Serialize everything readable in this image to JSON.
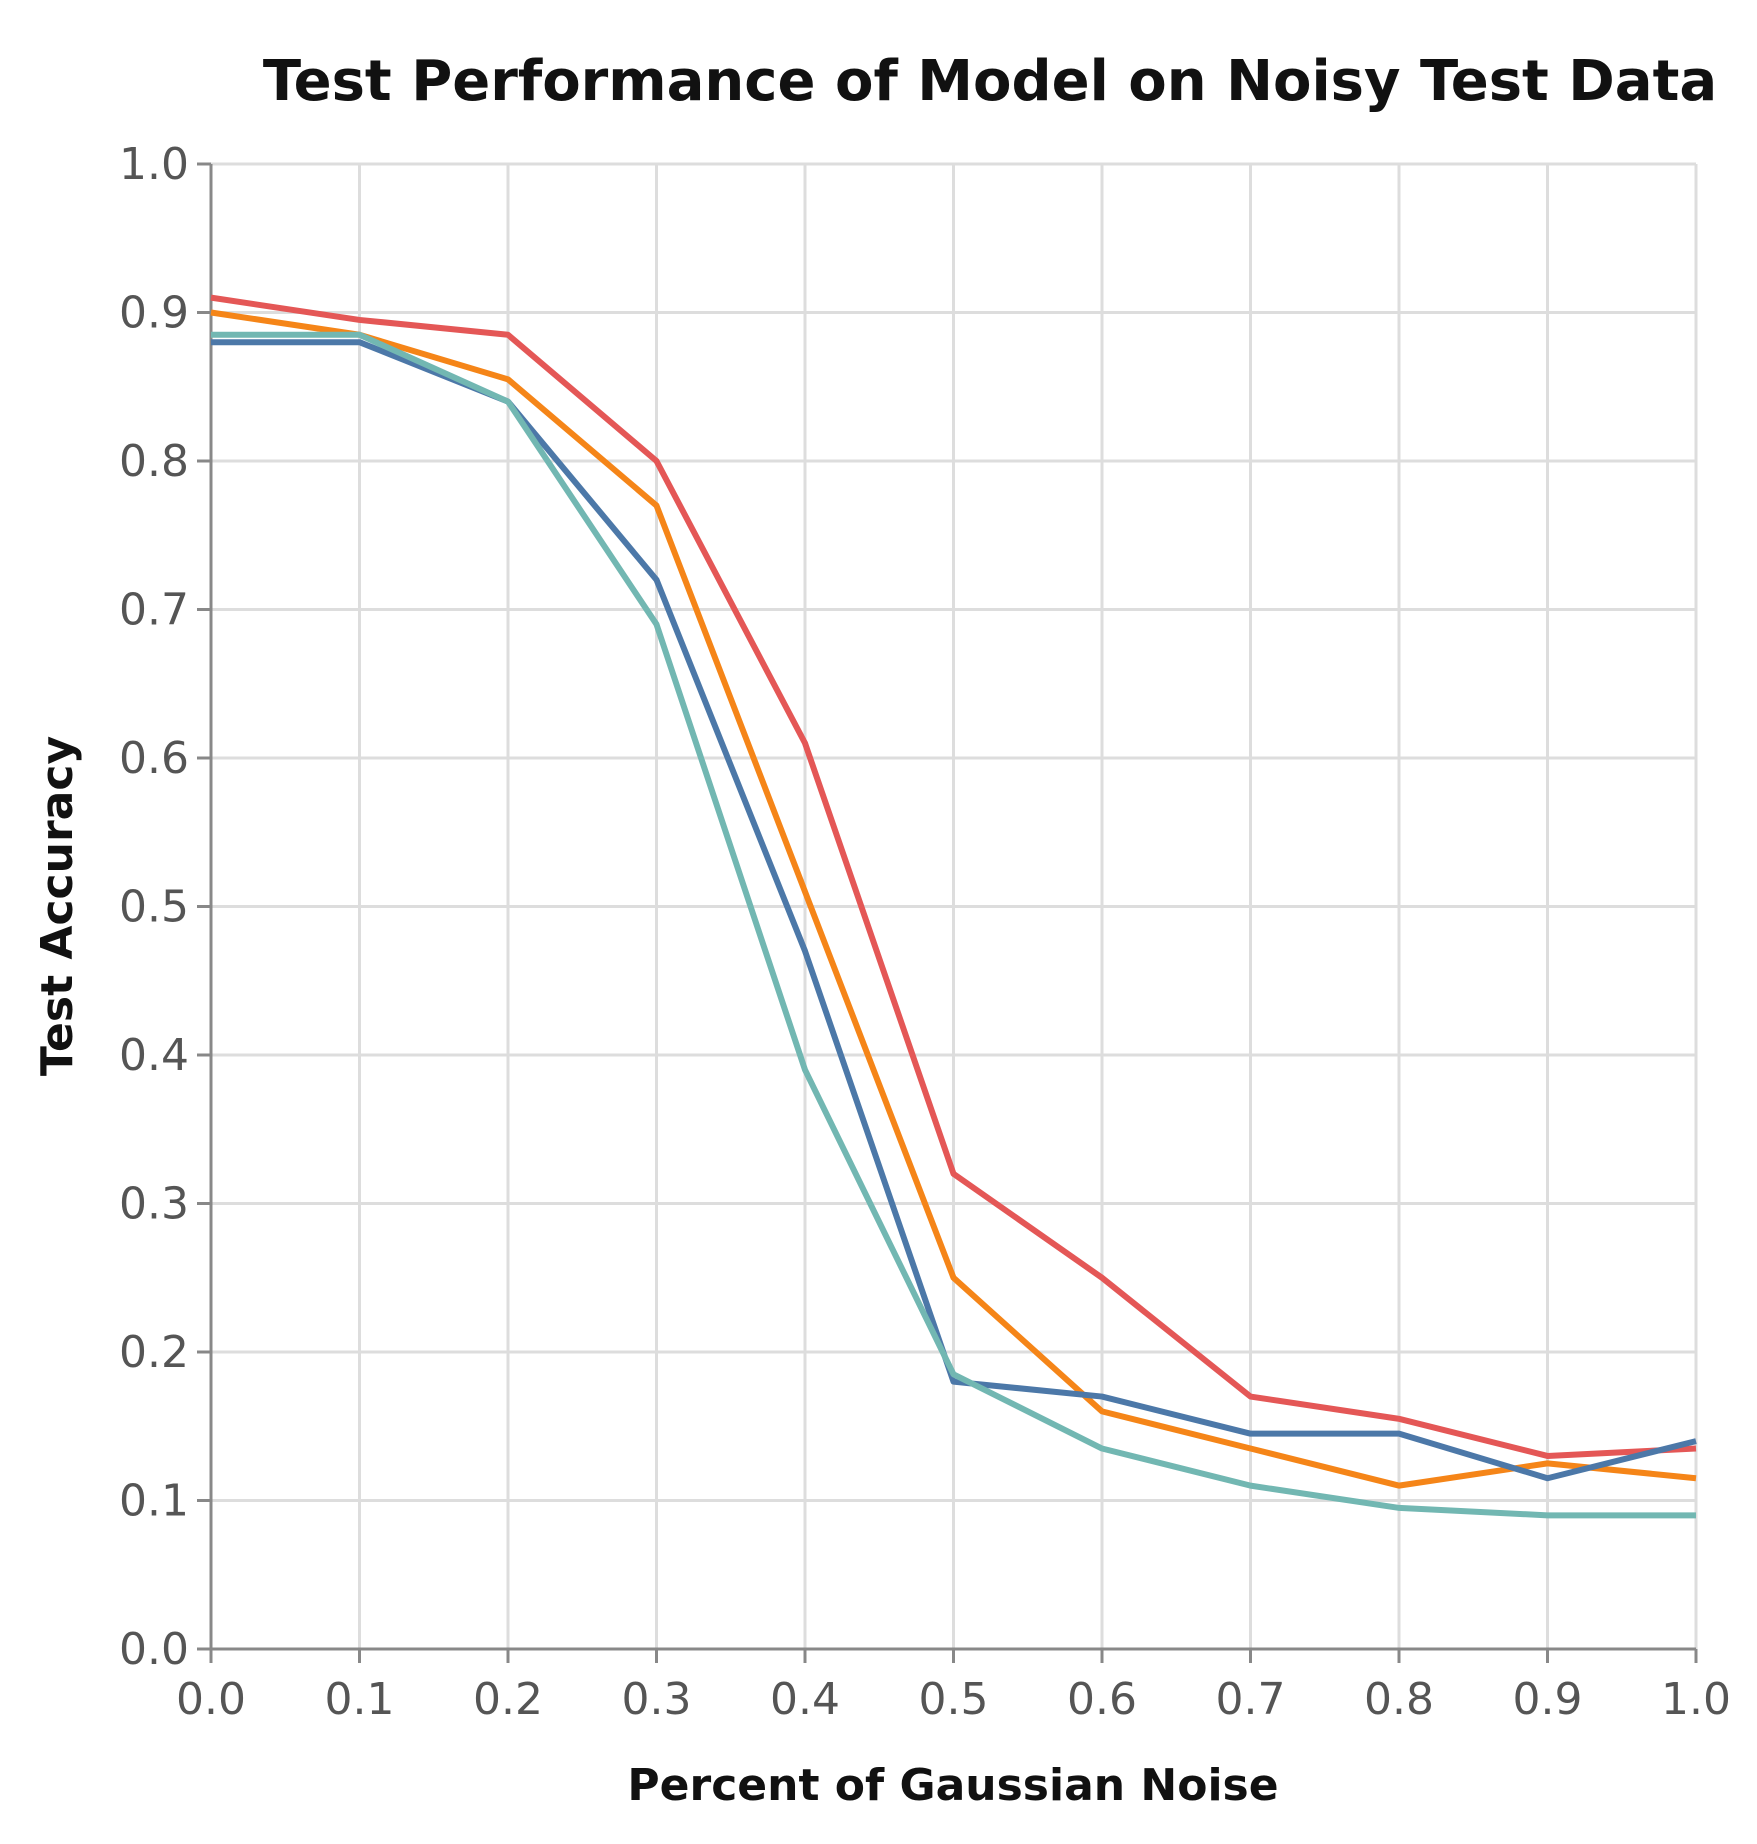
{
  "chart_data": {
    "type": "line",
    "title": "Test Performance of Model on Noisy Test Data",
    "xlabel": "Percent of Gaussian Noise",
    "ylabel": "Test Accuracy",
    "xlim": [
      0,
      1
    ],
    "ylim": [
      0,
      1
    ],
    "grid": true,
    "x": [
      0.0,
      0.1,
      0.2,
      0.3,
      0.4,
      0.5,
      0.6,
      0.7,
      0.8,
      0.9,
      1.0
    ],
    "x_ticks": [
      "0.0",
      "0.1",
      "0.2",
      "0.3",
      "0.4",
      "0.5",
      "0.6",
      "0.7",
      "0.8",
      "0.9",
      "1.0"
    ],
    "y_ticks": [
      "0.0",
      "0.1",
      "0.2",
      "0.3",
      "0.4",
      "0.5",
      "0.6",
      "0.7",
      "0.8",
      "0.9",
      "1.0"
    ],
    "series": [
      {
        "color": "#e45756",
        "values": [
          0.91,
          0.895,
          0.885,
          0.8,
          0.61,
          0.32,
          0.25,
          0.17,
          0.155,
          0.13,
          0.135
        ]
      },
      {
        "color": "#f58518",
        "values": [
          0.9,
          0.885,
          0.855,
          0.77,
          0.51,
          0.25,
          0.16,
          0.135,
          0.11,
          0.125,
          0.115
        ]
      },
      {
        "color": "#4c78a8",
        "values": [
          0.88,
          0.88,
          0.84,
          0.72,
          0.47,
          0.18,
          0.17,
          0.145,
          0.145,
          0.115,
          0.14
        ]
      },
      {
        "color": "#72b7b2",
        "values": [
          0.885,
          0.885,
          0.84,
          0.69,
          0.39,
          0.185,
          0.135,
          0.11,
          0.095,
          0.09,
          0.09
        ]
      }
    ]
  }
}
